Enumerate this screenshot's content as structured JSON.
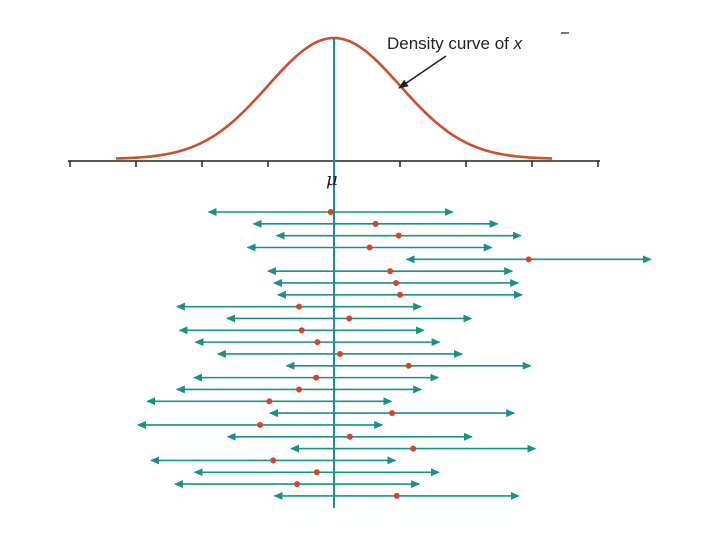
{
  "density_label": {
    "text": "Density curve of ",
    "xbar_symbol": "x"
  },
  "axis": {
    "mean_label": "μ"
  },
  "colors": {
    "curve": "#c9502e",
    "interval": "#1a9188",
    "center_line": "#1a9188",
    "point": "#d2462a",
    "axis": "#222222"
  },
  "intervals": [
    {
      "estimate": -0.05,
      "margin": 1.85
    },
    {
      "estimate": 0.63,
      "margin": 1.85
    },
    {
      "estimate": 0.98,
      "margin": 1.85
    },
    {
      "estimate": 0.54,
      "margin": 1.85
    },
    {
      "estimate": 2.95,
      "margin": 1.85
    },
    {
      "estimate": 0.85,
      "margin": 1.85
    },
    {
      "estimate": 0.94,
      "margin": 1.85
    },
    {
      "estimate": 1.0,
      "margin": 1.85
    },
    {
      "estimate": -0.53,
      "margin": 1.85
    },
    {
      "estimate": 0.23,
      "margin": 1.85
    },
    {
      "estimate": -0.49,
      "margin": 1.85
    },
    {
      "estimate": -0.25,
      "margin": 1.85
    },
    {
      "estimate": 0.09,
      "margin": 1.85
    },
    {
      "estimate": 1.13,
      "margin": 1.85
    },
    {
      "estimate": -0.27,
      "margin": 1.85
    },
    {
      "estimate": -0.53,
      "margin": 1.85
    },
    {
      "estimate": -0.98,
      "margin": 1.85
    },
    {
      "estimate": 0.88,
      "margin": 1.85
    },
    {
      "estimate": -1.12,
      "margin": 1.85
    },
    {
      "estimate": 0.24,
      "margin": 1.85
    },
    {
      "estimate": 1.2,
      "margin": 1.85
    },
    {
      "estimate": -0.92,
      "margin": 1.85
    },
    {
      "estimate": -0.26,
      "margin": 1.85
    },
    {
      "estimate": -0.56,
      "margin": 1.85
    },
    {
      "estimate": 0.95,
      "margin": 1.85
    }
  ]
}
